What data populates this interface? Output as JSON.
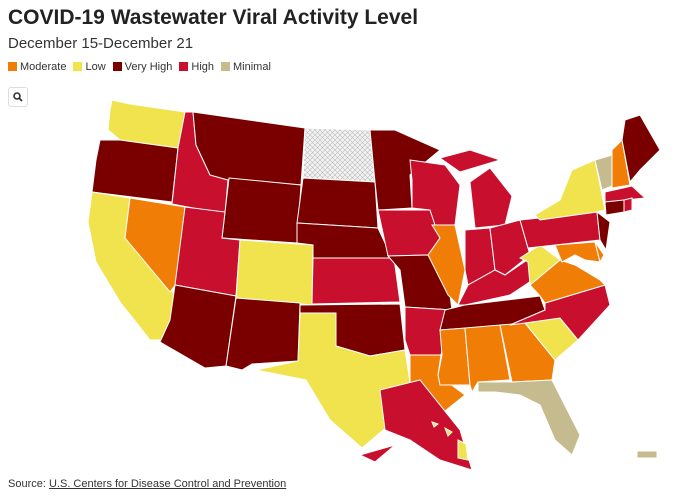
{
  "title": "COVID-19 Wastewater Viral Activity Level",
  "subtitle": "December 15-December 21",
  "legend": [
    {
      "label": "Moderate",
      "color": "#f07e06"
    },
    {
      "label": "Low",
      "color": "#f1e34e"
    },
    {
      "label": "Very High",
      "color": "#7a0000"
    },
    {
      "label": "High",
      "color": "#c8102e"
    },
    {
      "label": "Minimal",
      "color": "#c5bb8e"
    }
  ],
  "states": [
    "Low",
    "Very High",
    "Low",
    "Moderate",
    "High",
    "Very High",
    "Very High",
    "High",
    "Very High",
    "Low",
    "Very High",
    null,
    "Very High",
    "Very High",
    "High",
    "Very High",
    "Low",
    "Very High",
    "High",
    "Very High",
    "High",
    "Moderate",
    "High",
    "Moderate",
    "High",
    "High",
    "High",
    "High",
    "Very High",
    "Moderate",
    "Moderate",
    "Moderate",
    "Minimal",
    "Low",
    "High",
    "Moderate",
    "Low",
    "Moderate",
    "Moderate",
    "High",
    "Very High",
    "Low",
    "Minimal",
    "Moderate",
    "Very High",
    "High",
    "Very High",
    "High",
    "High",
    "Low",
    "Minimal",
    null
  ],
  "source": {
    "label": "Source:",
    "link": "U.S. Centers for Disease Control and Prevention"
  }
}
